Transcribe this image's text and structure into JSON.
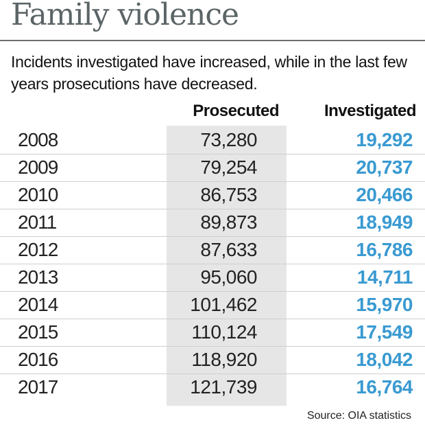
{
  "title": "Family violence",
  "subtitle": "Incidents investigated have increased, while in the last few years prosecutions have decreased.",
  "source": "Source: OIA statistics",
  "chart_data": {
    "type": "table",
    "columns": [
      "Prosecuted",
      "Investigated"
    ],
    "rows": [
      {
        "year": "2008",
        "prosecuted": "73,280",
        "investigated": "19,292"
      },
      {
        "year": "2009",
        "prosecuted": "79,254",
        "investigated": "20,737"
      },
      {
        "year": "2010",
        "prosecuted": "86,753",
        "investigated": "20,466"
      },
      {
        "year": "2011",
        "prosecuted": "89,873",
        "investigated": "18,949"
      },
      {
        "year": "2012",
        "prosecuted": "87,633",
        "investigated": "16,786"
      },
      {
        "year": "2013",
        "prosecuted": "95,060",
        "investigated": "14,711"
      },
      {
        "year": "2014",
        "prosecuted": "101,462",
        "investigated": "15,970"
      },
      {
        "year": "2015",
        "prosecuted": "110,124",
        "investigated": "17,549"
      },
      {
        "year": "2016",
        "prosecuted": "118,920",
        "investigated": "18,042"
      },
      {
        "year": "2017",
        "prosecuted": "121,739",
        "investigated": "16,764"
      }
    ]
  },
  "colors": {
    "title": "#5b6466",
    "investigated": "#3a9ad1",
    "column_bg": "#e6e6e6"
  }
}
